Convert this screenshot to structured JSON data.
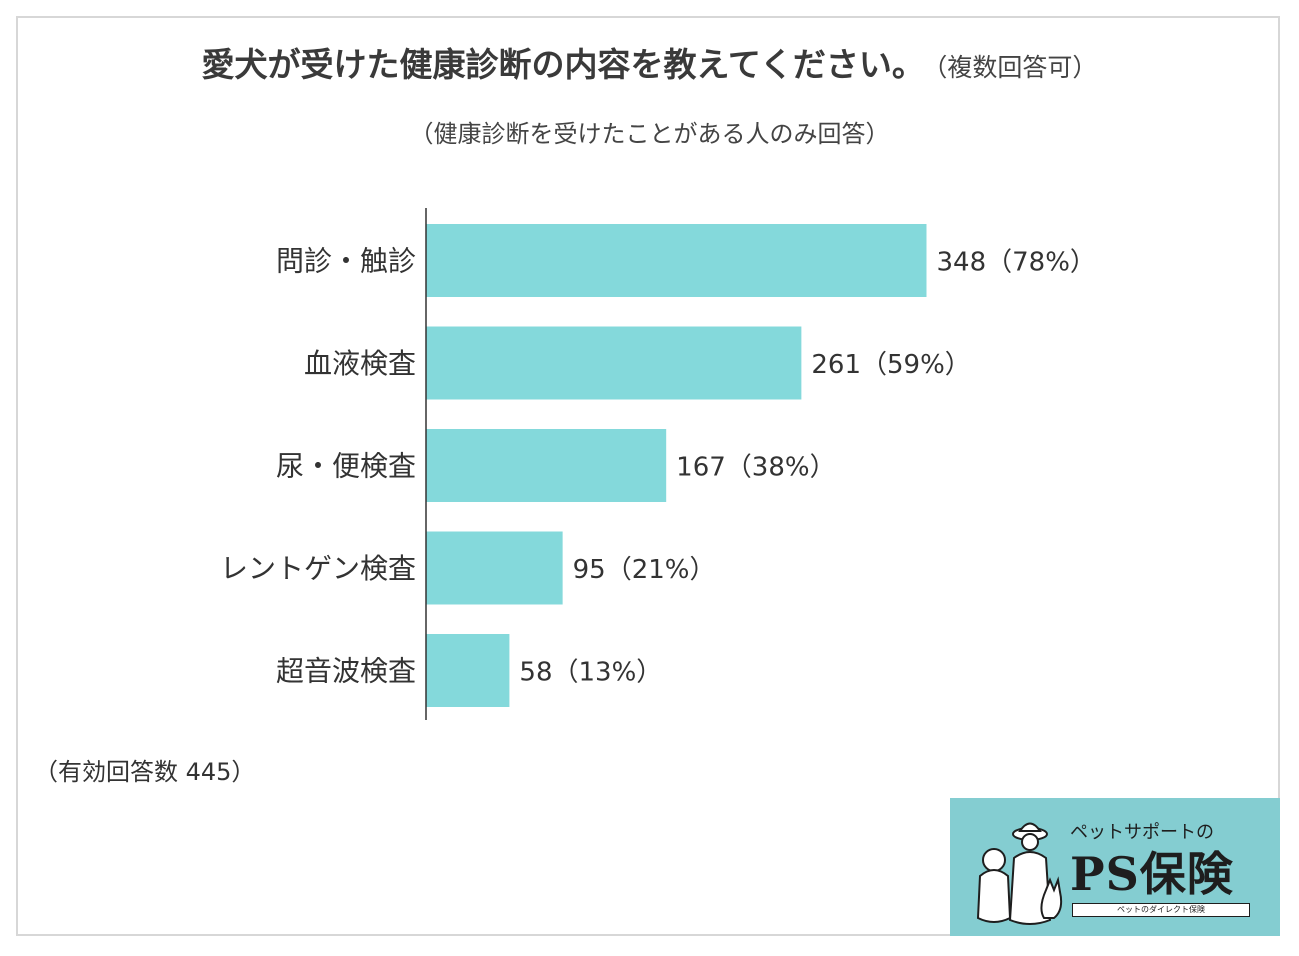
{
  "title": "愛犬が受けた健康診断の内容を教えてください。",
  "title_note": "（複数回答可）",
  "subtitle": "（健康診断を受けたことがある人のみ回答）",
  "footnote": "（有効回答数 445）",
  "colors": {
    "bar": "#84d9db",
    "axis": "#333333",
    "logo_bg": "#84cdd1"
  },
  "chart_data": {
    "type": "bar",
    "orientation": "horizontal",
    "categories": [
      "問診・触診",
      "血液検査",
      "尿・便検査",
      "レントゲン検査",
      "超音波検査"
    ],
    "values": [
      348,
      261,
      167,
      95,
      58
    ],
    "value_labels": [
      "348（78%）",
      "261（59%）",
      "167（38%）",
      "95（21%）",
      "58（13%）"
    ],
    "xlim": [
      0,
      445
    ]
  },
  "logo": {
    "tagline": "ペットサポートの",
    "name": "PS保険",
    "subline": "ペットのダイレクト保険"
  }
}
